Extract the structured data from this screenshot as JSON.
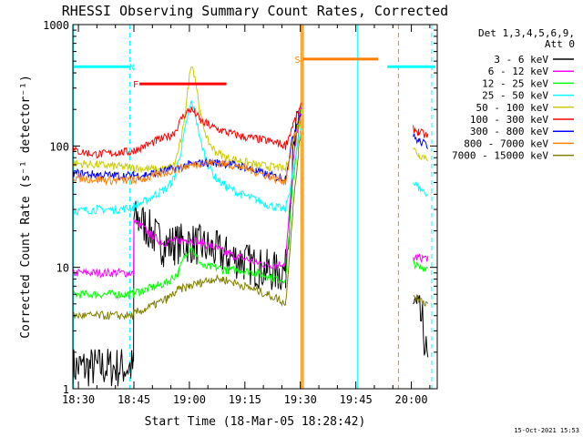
{
  "chart_data": {
    "type": "line",
    "title": "RHESSI Observing Summary Count Rates, Corrected",
    "xlabel": "Start Time (18-Mar-05 18:28:42)",
    "ylabel": "Corrected Count Rate (s⁻¹ detector⁻¹)",
    "yscale": "log",
    "ylim": [
      1,
      1000
    ],
    "xlim_minutes_after_1830": [
      -1.5,
      97
    ],
    "x_ticks": [
      {
        "label": "18:30",
        "minute": 0
      },
      {
        "label": "18:45",
        "minute": 15
      },
      {
        "label": "19:00",
        "minute": 30
      },
      {
        "label": "19:15",
        "minute": 45
      },
      {
        "label": "19:30",
        "minute": 60
      },
      {
        "label": "19:45",
        "minute": 75
      },
      {
        "label": "20:00",
        "minute": 90
      }
    ],
    "y_ticks": [
      {
        "label": "1",
        "value": 1
      },
      {
        "label": "10",
        "value": 10
      },
      {
        "label": "100",
        "value": 100
      },
      {
        "label": "1000",
        "value": 1000
      }
    ],
    "legend_header": [
      "Det 1,3,4,5,6,9,",
      "Att 0"
    ],
    "legend_position": "right",
    "timestamp": "15-Oct-2021 15:53",
    "gaps_minutes": [
      [
        60.2,
        90.5
      ]
    ],
    "series": [
      {
        "name": "3 - 6 keV",
        "color": "#000000",
        "x": [
          -1.5,
          14.9,
          15.0,
          17,
          20,
          23,
          26,
          30,
          33,
          36,
          40,
          44,
          48,
          51,
          54,
          56,
          58,
          59.5,
          60.2,
          90.5,
          91.5,
          93,
          94.5
        ],
        "y": [
          1.5,
          1.5,
          25,
          24,
          19,
          15,
          15.5,
          16,
          15,
          14,
          12.5,
          11.5,
          10,
          9.5,
          9,
          9.5,
          80,
          170,
          210,
          5,
          4.5,
          3.5,
          1.5
        ]
      },
      {
        "name": "6 - 12 keV",
        "color": "#ff00ff",
        "x": [
          -1.5,
          14.9,
          15.0,
          17,
          20,
          23,
          26,
          30,
          33,
          36,
          40,
          44,
          48,
          51,
          54,
          56,
          58,
          59.5,
          60.2,
          90.5,
          92,
          94.5
        ],
        "y": [
          9,
          9,
          24,
          22,
          18,
          16,
          16.5,
          17,
          16,
          15,
          13,
          12,
          11,
          10.5,
          10.5,
          11,
          70,
          160,
          200,
          12,
          12,
          12
        ]
      },
      {
        "name": "12 - 25 keV",
        "color": "#00ff00",
        "x": [
          -1.5,
          14.9,
          15.0,
          18,
          21,
          24,
          27,
          29,
          30.5,
          32,
          34,
          37,
          40,
          44,
          48,
          51,
          54,
          56,
          58,
          59.5,
          60.2,
          90.5,
          92,
          94.5
        ],
        "y": [
          6,
          6,
          6.2,
          6.5,
          7,
          7.5,
          9,
          13,
          15,
          12,
          10,
          10,
          9.5,
          9.5,
          9,
          8.5,
          8,
          8,
          50,
          130,
          190,
          11,
          10,
          10
        ]
      },
      {
        "name": "25 - 50 keV",
        "color": "#00ffff",
        "x": [
          -1.5,
          5,
          10,
          14.9,
          15.0,
          18,
          21,
          24,
          26,
          28,
          29.5,
          30.5,
          31.5,
          33,
          35,
          37,
          40,
          44,
          48,
          51,
          54,
          56,
          58,
          59.5,
          60.2,
          90.5,
          92,
          94.5
        ],
        "y": [
          29,
          30,
          30,
          31,
          32,
          35,
          40,
          45,
          55,
          100,
          170,
          230,
          190,
          110,
          70,
          55,
          46,
          40,
          36,
          33,
          31,
          30,
          60,
          110,
          150,
          50,
          45,
          40
        ]
      },
      {
        "name": "50 - 100 keV",
        "color": "#cccc00",
        "x": [
          -1.5,
          5,
          10,
          14.9,
          15.0,
          18,
          21,
          24,
          26,
          28,
          29.5,
          30.5,
          31.5,
          33,
          35,
          37,
          40,
          44,
          48,
          51,
          54,
          56,
          58,
          59.5,
          60.2,
          90.5,
          92,
          94.5
        ],
        "y": [
          72,
          70,
          68,
          66,
          66,
          65,
          64,
          65,
          70,
          120,
          280,
          480,
          380,
          180,
          110,
          90,
          80,
          75,
          70,
          68,
          66,
          64,
          110,
          160,
          180,
          95,
          85,
          80
        ]
      },
      {
        "name": "100 - 300 keV",
        "color": "#ff0000",
        "x": [
          -1.5,
          5,
          10,
          14.9,
          15.0,
          18,
          21,
          24,
          26,
          28,
          29.5,
          30.5,
          31.5,
          33,
          35,
          37,
          40,
          44,
          48,
          51,
          54,
          56,
          58,
          59.5,
          60.2,
          90.5,
          92,
          94.5
        ],
        "y": [
          92,
          85,
          88,
          90,
          92,
          100,
          110,
          118,
          130,
          170,
          195,
          200,
          190,
          160,
          150,
          140,
          130,
          120,
          115,
          110,
          105,
          100,
          150,
          190,
          210,
          140,
          130,
          120
        ]
      },
      {
        "name": "300 - 800 keV",
        "color": "#0000ff",
        "x": [
          -1.5,
          5,
          10,
          14.9,
          15.0,
          18,
          21,
          24,
          27,
          30,
          33,
          36,
          39,
          42,
          45,
          48,
          51,
          54,
          56,
          58,
          59.5,
          60.2,
          90.5,
          92,
          94.5
        ],
        "y": [
          60,
          58,
          57,
          57,
          57,
          58,
          60,
          63,
          66,
          70,
          72,
          73,
          72,
          70,
          67,
          62,
          58,
          55,
          55,
          120,
          170,
          190,
          120,
          110,
          100
        ]
      },
      {
        "name": "800 - 7000 keV",
        "color": "#ff8000",
        "x": [
          -1.5,
          5,
          10,
          14.9,
          15.0,
          18,
          21,
          24,
          27,
          30,
          33,
          36,
          39,
          42,
          45,
          48,
          51,
          54,
          56,
          58,
          59.5,
          60.2
        ],
        "y": [
          55,
          53,
          52,
          52,
          52,
          54,
          57,
          61,
          65,
          69,
          72,
          73,
          72,
          69,
          66,
          61,
          57,
          53,
          51,
          110,
          150,
          170
        ]
      },
      {
        "name": "7000 - 15000 keV",
        "color": "#808000",
        "x": [
          -1.5,
          14.9,
          15.0,
          18,
          21,
          24,
          27,
          30,
          33,
          36,
          39,
          42,
          45,
          48,
          51,
          54,
          56,
          58,
          59.5,
          60.2,
          90.5,
          92,
          94.5
        ],
        "y": [
          4,
          4,
          4.2,
          4.5,
          5,
          5.5,
          6.5,
          7,
          7.5,
          8,
          8,
          7.5,
          7,
          6.5,
          6,
          5.5,
          5,
          30,
          90,
          130,
          6,
          5.5,
          5
        ]
      }
    ],
    "state_bars": [
      {
        "label": "N",
        "color": "#00ffff",
        "y_level": 450,
        "segments": [
          [
            -1.5,
            13.5
          ],
          [
            83.5,
            96.5
          ]
        ],
        "label_minute": 14.5
      },
      {
        "label": "F",
        "color": "#ff0000",
        "y_level": 325,
        "segments": [
          [
            16.5,
            40
          ]
        ],
        "label_minute": 15.5
      },
      {
        "label": "S",
        "color": "#ff8000",
        "y_level": 520,
        "segments": [
          [
            60.5,
            81
          ]
        ],
        "label_minute": 59.2
      }
    ],
    "vertical_markers": [
      {
        "minute": -1.3,
        "color": "#00ffff",
        "style": "solid"
      },
      {
        "minute": 13.9,
        "color": "#00ffff",
        "style": "dashed"
      },
      {
        "minute": 60.2,
        "color": "#ff8000",
        "style": "solid"
      },
      {
        "minute": 60.7,
        "color": "#ff8000",
        "style": "solid"
      },
      {
        "minute": 75.5,
        "color": "#00ffff",
        "style": "solid"
      },
      {
        "minute": 86.5,
        "color": "#ff8000",
        "style": "dashed"
      },
      {
        "minute": 95.5,
        "color": "#00ffff",
        "style": "dashed"
      }
    ]
  }
}
